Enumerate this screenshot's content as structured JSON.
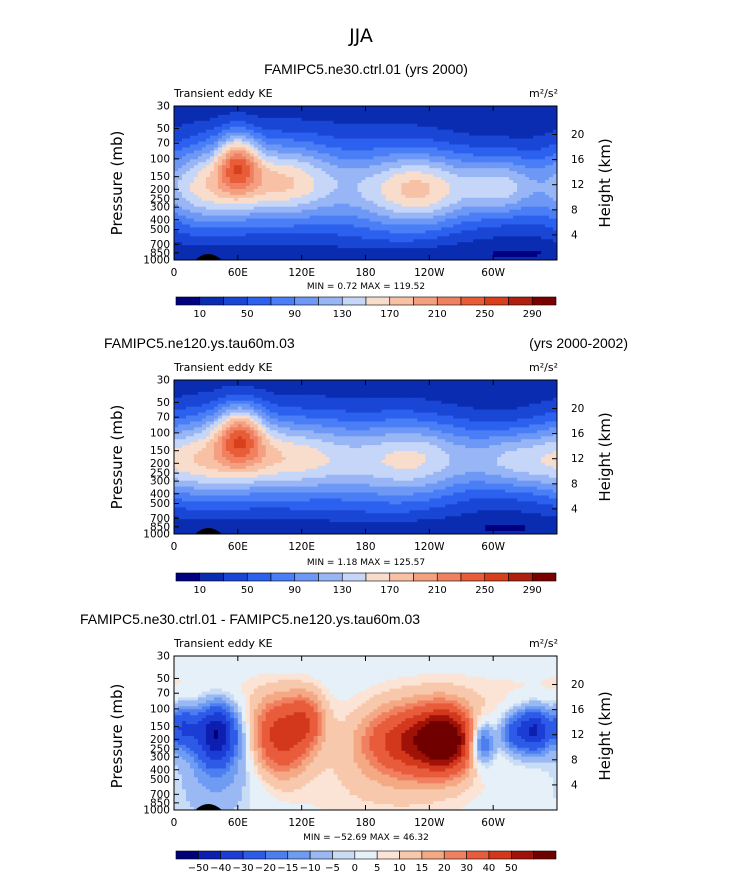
{
  "page_title": "JJA",
  "pressure_ticks": [
    "30",
    "50",
    "70",
    "100",
    "150",
    "200",
    "250",
    "300",
    "400",
    "500",
    "700",
    "850",
    "1000"
  ],
  "height_ticks": [
    "20",
    "16",
    "12",
    "8",
    "4"
  ],
  "lon_ticks": [
    "0",
    "60E",
    "120E",
    "180",
    "120W",
    "60W"
  ],
  "palette_main": [
    "#000080",
    "#0a2cb0",
    "#1a46d6",
    "#2c60ee",
    "#4a7ef6",
    "#6e98f6",
    "#98b6f6",
    "#c6d6f8",
    "#f8dccc",
    "#f8c0a4",
    "#f4a080",
    "#f08060",
    "#e85c38",
    "#d8401c",
    "#b02010",
    "#7a0000"
  ],
  "palette_diff": [
    "#00007a",
    "#0c1fb0",
    "#1c3cd6",
    "#2e5ae8",
    "#4c7ef0",
    "#6e9cf2",
    "#9ab8f4",
    "#c8dcf6",
    "#e6f0f8",
    "#fbe4d6",
    "#f8c8ac",
    "#f4a884",
    "#f08060",
    "#e85c3c",
    "#d4381c",
    "#a01208",
    "#700000"
  ],
  "panels": [
    {
      "title": "FAMIPC5.ne30.ctrl.01 (yrs 2000)",
      "left_label": "Transient eddy KE",
      "units": "m²/s²",
      "min_label": "MIN =    0.72   MAX = 119.52",
      "ylabel_left": "Pressure  (mb)",
      "ylabel_right": "Height  (km)",
      "colorbar_labels": [
        "10",
        "50",
        "90",
        "130",
        "170",
        "210",
        "250",
        "290"
      ]
    },
    {
      "title_left": "FAMIPC5.ne120.ys.tau60m.03",
      "title_right": "(yrs 2000-2002)",
      "left_label": "Transient eddy KE",
      "units": "m²/s²",
      "min_label": "MIN =    1.18   MAX = 125.57",
      "ylabel_left": "Pressure  (mb)",
      "ylabel_right": "Height  (km)",
      "colorbar_labels": [
        "10",
        "50",
        "90",
        "130",
        "170",
        "210",
        "250",
        "290"
      ]
    },
    {
      "title": "FAMIPC5.ne30.ctrl.01 - FAMIPC5.ne120.ys.tau60m.03",
      "left_label": "Transient eddy KE",
      "units": "m²/s²",
      "min_label": "MIN = −52.69   MAX =  46.32",
      "ylabel_left": "Pressure  (mb)",
      "ylabel_right": "Height  (km)",
      "colorbar_labels": [
        "−50",
        "−40",
        "−30",
        "−20",
        "−15",
        "−10",
        "−5",
        "0",
        "5",
        "10",
        "15",
        "20",
        "30",
        "40",
        "50"
      ]
    }
  ],
  "chart_data": [
    {
      "type": "heatmap",
      "title": "FAMIPC5.ne30.ctrl.01 (yrs 2000)",
      "variable": "Transient eddy KE",
      "units": "m²/s²",
      "x_axis": "longitude",
      "y_axis": "pressure (mb)",
      "ylim": [
        1000,
        30
      ],
      "min": 0.72,
      "max": 119.52,
      "contour_levels": [
        10,
        30,
        50,
        70,
        90,
        110,
        130,
        150,
        170,
        190,
        210,
        230,
        250,
        270,
        290
      ]
    },
    {
      "type": "heatmap",
      "title": "FAMIPC5.ne120.ys.tau60m.03 (yrs 2000-2002)",
      "variable": "Transient eddy KE",
      "units": "m²/s²",
      "x_axis": "longitude",
      "y_axis": "pressure (mb)",
      "ylim": [
        1000,
        30
      ],
      "min": 1.18,
      "max": 125.57,
      "contour_levels": [
        10,
        30,
        50,
        70,
        90,
        110,
        130,
        150,
        170,
        190,
        210,
        230,
        250,
        270,
        290
      ]
    },
    {
      "type": "heatmap",
      "title": "FAMIPC5.ne30.ctrl.01 - FAMIPC5.ne120.ys.tau60m.03",
      "variable": "Transient eddy KE",
      "units": "m²/s²",
      "x_axis": "longitude",
      "y_axis": "pressure (mb)",
      "ylim": [
        1000,
        30
      ],
      "min": -52.69,
      "max": 46.32,
      "contour_levels": [
        -50,
        -40,
        -30,
        -20,
        -15,
        -10,
        -5,
        0,
        5,
        10,
        15,
        20,
        30,
        40,
        50
      ]
    }
  ]
}
